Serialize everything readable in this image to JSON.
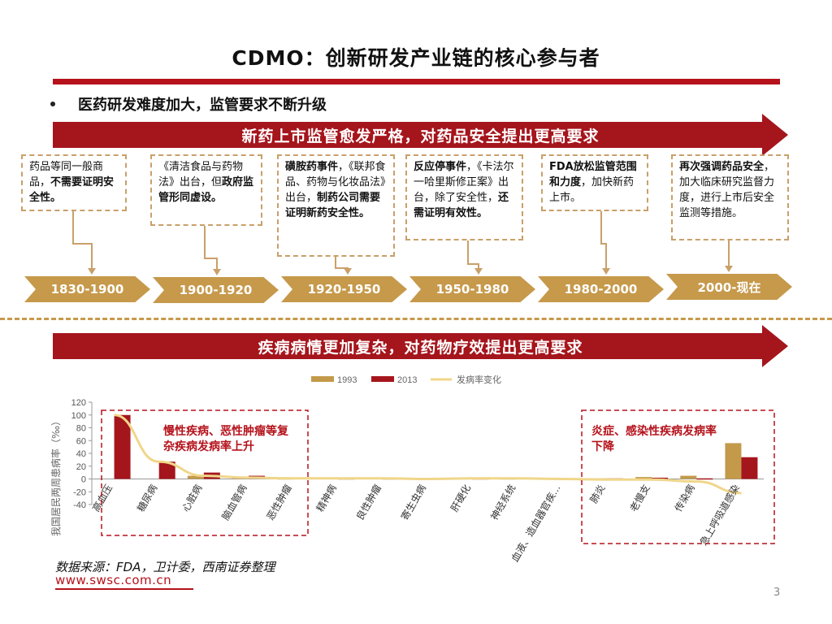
{
  "page": {
    "title": "CDMO：创新研发产业链的核心参与者",
    "bullet": "医药研发难度加大，监管要求不断升级",
    "banner_top": "新药上市监管愈发严格，对药品安全提出更高要求",
    "banner_bottom": "疾病病情更加复杂，对药物疗效提出更高要求",
    "source": "数据来源：FDA，卫计委，西南证券整理",
    "site": "www.swsc.com.cn",
    "page_number": "3"
  },
  "timeline": {
    "periods": [
      "1830-1900",
      "1900-1920",
      "1920-1950",
      "1950-1980",
      "1980-2000",
      "2000-现在"
    ],
    "events": [
      {
        "parts": [
          {
            "text": "药品等同一般商品，",
            "bold": false
          },
          {
            "text": "不需要证明安全性。",
            "bold": true
          }
        ]
      },
      {
        "parts": [
          {
            "text": "《清洁食品与药物法》出台，但",
            "bold": false
          },
          {
            "text": "政府监管形同虚设。",
            "bold": true
          }
        ]
      },
      {
        "parts": [
          {
            "text": "磺胺药事件",
            "bold": true
          },
          {
            "text": "，《联邦食品、药物与化妆品法》出台，",
            "bold": false
          },
          {
            "text": "制药公司需要证明新药安全性。",
            "bold": true
          }
        ]
      },
      {
        "parts": [
          {
            "text": "反应停事件",
            "bold": true
          },
          {
            "text": "，《卡法尔一哈里斯修正案》出台，除了安全性，",
            "bold": false
          },
          {
            "text": "还需证明有效性。",
            "bold": true
          }
        ]
      },
      {
        "parts": [
          {
            "text": "FDA放松监管范围和力度",
            "bold": true
          },
          {
            "text": "，加快新药上市。",
            "bold": false
          }
        ]
      },
      {
        "parts": [
          {
            "text": "再次强调药品安全",
            "bold": true
          },
          {
            "text": "，加大临床研究监督力度，进行上市后安全监测等措施。",
            "bold": false
          }
        ]
      }
    ]
  },
  "annotations": {
    "left": "慢性疾病、恶性肿瘤等复杂疾病发病率上升",
    "right": "炎症、感染性疾病发病率下降"
  },
  "colors": {
    "accent_red": "#a5151c",
    "gold": "#c6994b",
    "bar_1993": "#c39a4a",
    "bar_2013": "#a5151c",
    "line": "#f0d68a"
  },
  "chart_data": {
    "type": "bar",
    "title": "",
    "xlabel": "",
    "ylabel": "我国居民两周患病率（‰）",
    "ylim": [
      -40,
      120
    ],
    "yticks": [
      -40,
      -20,
      0,
      20,
      40,
      60,
      80,
      100,
      120
    ],
    "legend": [
      "1993",
      "2013",
      "发病率变化"
    ],
    "legend_position": "top",
    "categories": [
      "高血压",
      "糖尿病",
      "心脏病",
      "脑血管病",
      "恶性肿瘤",
      "精神病",
      "良性肿瘤",
      "寄生虫病",
      "肝硬化",
      "神经系统",
      "血液、造血器官疾...",
      "肺炎",
      "老慢支",
      "传染病",
      "急上呼吸道感染"
    ],
    "series": [
      {
        "name": "1993",
        "kind": "bar",
        "values": [
          0,
          0,
          5,
          3,
          1,
          0,
          0,
          0,
          0,
          1,
          1,
          1,
          3,
          5,
          56
        ]
      },
      {
        "name": "2013",
        "kind": "bar",
        "values": [
          100,
          27,
          10,
          5,
          2,
          1,
          1,
          0,
          1,
          2,
          1,
          1,
          2,
          1,
          34
        ]
      },
      {
        "name": "发病率变化",
        "kind": "line",
        "values": [
          100,
          27,
          5,
          2,
          1,
          1,
          1,
          0,
          1,
          1,
          0,
          -1,
          -1,
          -4,
          -22
        ]
      }
    ]
  }
}
